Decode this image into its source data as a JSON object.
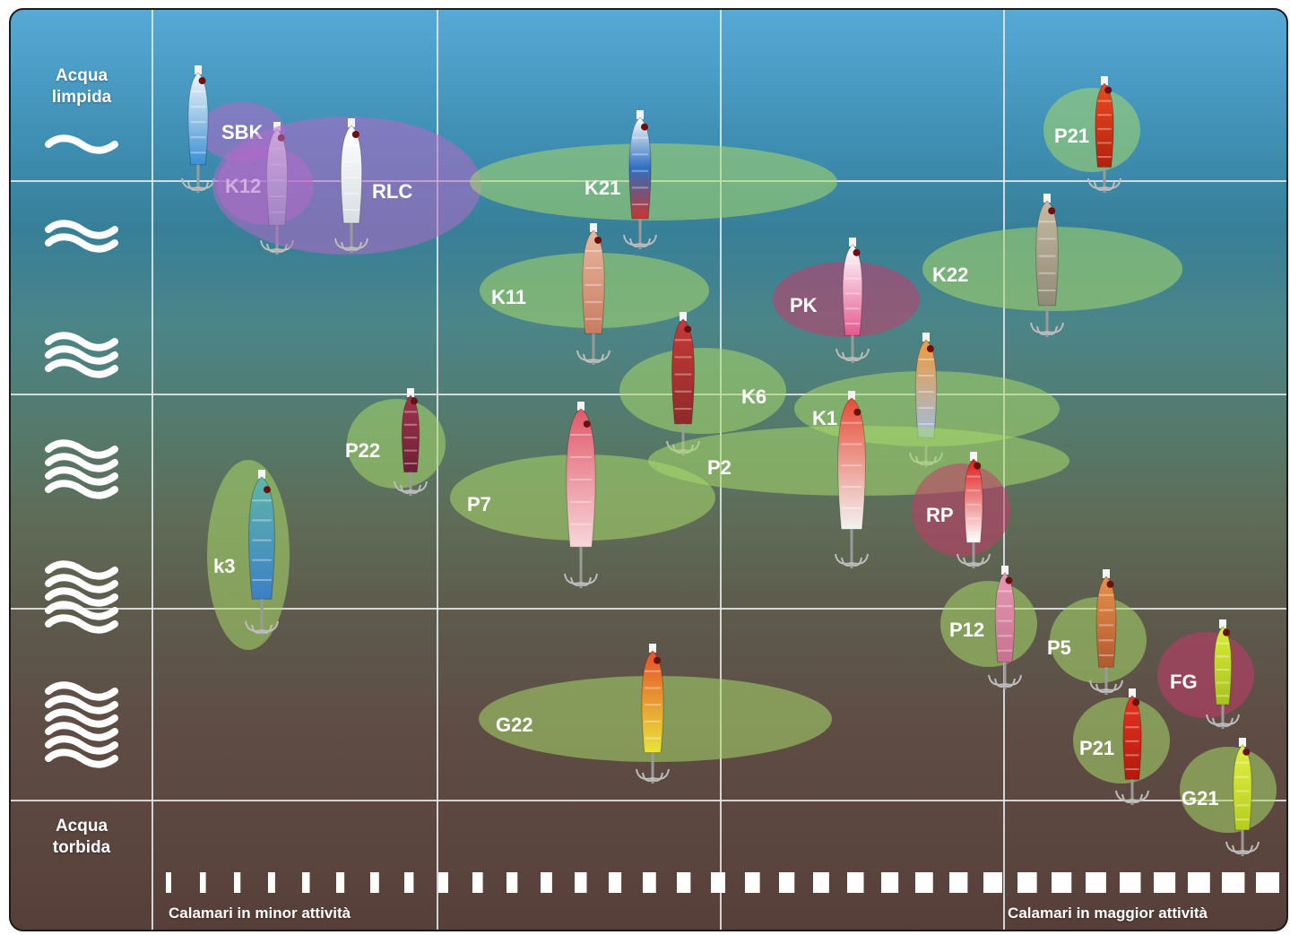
{
  "sidebar": {
    "top_label": "Acqua\nlimpida",
    "bottom_label": "Acqua\ntorbida",
    "wave_levels": [
      1,
      2,
      3,
      4,
      5,
      6
    ]
  },
  "footer": {
    "left_label": "Calamari in minor attività",
    "right_label": "Calamari in maggior attività",
    "activity_bar_count": 33
  },
  "colors": {
    "purple": "#b569c9",
    "green": "#a8d96a",
    "red": "#c43a6a",
    "grid_line": "#e6ecef",
    "text": "#ffffff"
  },
  "jigs": [
    {
      "label": "SBK",
      "zone": "purple",
      "body": [
        "#f2f7fb",
        "#3a8fd4"
      ]
    },
    {
      "label": "K12",
      "zone": "purple",
      "body": [
        "#e8eef3",
        "#8aa1bd"
      ]
    },
    {
      "label": "RLC",
      "zone": "purple",
      "body": [
        "#ffffff",
        "#d8dde2"
      ]
    },
    {
      "label": "K21",
      "zone": "green",
      "body": [
        "#ffffff",
        "#2f6fc0",
        "#c8352c"
      ]
    },
    {
      "label": "P21",
      "zone": "green",
      "body": [
        "#e84c1e",
        "#b3200f"
      ]
    },
    {
      "label": "K22",
      "zone": "green",
      "body": [
        "#c7b9a2",
        "#8f8b74"
      ]
    },
    {
      "label": "K11",
      "zone": "green",
      "body": [
        "#e9b7a0",
        "#c77c62"
      ]
    },
    {
      "label": "PK",
      "zone": "red",
      "body": [
        "#ffffff",
        "#e35a8f"
      ]
    },
    {
      "label": "K6",
      "zone": "green",
      "body": [
        "#c83a37",
        "#8e2a2a"
      ]
    },
    {
      "label": "K1",
      "zone": "green",
      "body": [
        "#f19a3a",
        "#9fbce0"
      ]
    },
    {
      "label": "P2",
      "zone": "green",
      "body": [
        "#e64b35",
        "#f2f2f2"
      ]
    },
    {
      "label": "P22",
      "zone": "green",
      "body": [
        "#a3334f",
        "#6d1f35"
      ]
    },
    {
      "label": "P7",
      "zone": "green",
      "body": [
        "#e05a6a",
        "#f7d6da"
      ]
    },
    {
      "label": "RP",
      "zone": "red",
      "body": [
        "#e21a1a",
        "#ffffff"
      ]
    },
    {
      "label": "k3",
      "zone": "green",
      "body": [
        "#5fb6a8",
        "#3d7fc6"
      ]
    },
    {
      "label": "P12",
      "zone": "green",
      "body": [
        "#e79ab4",
        "#c7708f"
      ]
    },
    {
      "label": "P5",
      "zone": "green",
      "body": [
        "#e8904a",
        "#b05a30"
      ]
    },
    {
      "label": "FG",
      "zone": "red",
      "body": [
        "#d9ee3a",
        "#a6c21e"
      ]
    },
    {
      "label": "G22",
      "zone": "green",
      "body": [
        "#e8502a",
        "#e8e43a"
      ]
    },
    {
      "label": "P21",
      "zone": "green",
      "body": [
        "#e8341e",
        "#b3180f"
      ]
    },
    {
      "label": "G21",
      "zone": "green",
      "body": [
        "#e1f043",
        "#b5cd1f"
      ]
    }
  ]
}
